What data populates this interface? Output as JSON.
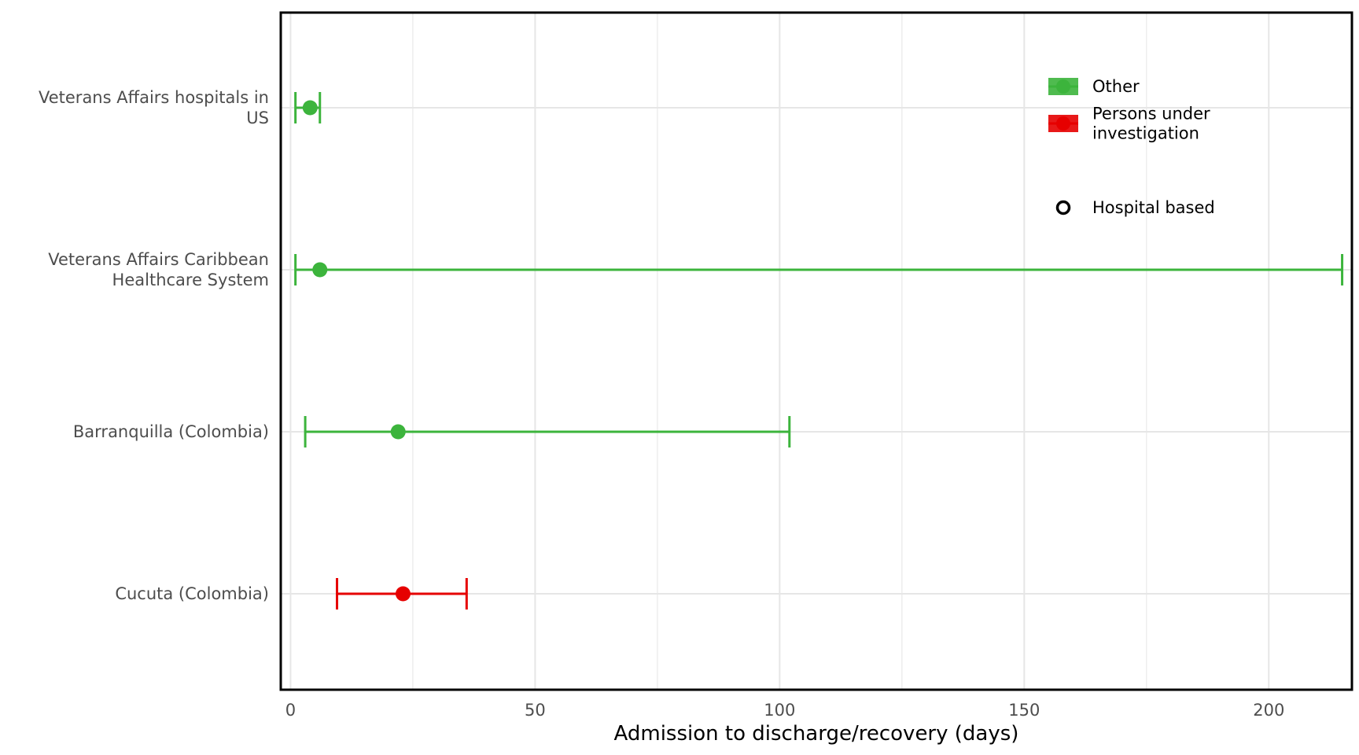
{
  "chart_data": {
    "type": "scatter",
    "xlabel": "Admission to discharge/recovery (days)",
    "ylabel": "",
    "xlim": [
      -2,
      217
    ],
    "x_ticks": [
      0,
      50,
      100,
      150,
      200
    ],
    "x_tick_labels": [
      "0",
      "50",
      "100",
      "150",
      "200"
    ],
    "grid": true,
    "categories": [
      [
        "Veterans Affairs hospitals in",
        "US"
      ],
      [
        "Veterans Affairs Caribbean",
        "Healthcare System"
      ],
      [
        "Barranquilla (Colombia)"
      ],
      [
        "Cucuta (Colombia)"
      ]
    ],
    "points": [
      {
        "series": "Other",
        "estimate": 4,
        "low": 1,
        "high": 6
      },
      {
        "series": "Other",
        "estimate": 6,
        "low": 1,
        "high": 215
      },
      {
        "series": "Other",
        "estimate": 22,
        "low": 3,
        "high": 102
      },
      {
        "series": "Persons under investigation",
        "estimate": 23,
        "low": 9.5,
        "high": 36
      }
    ],
    "series": [
      {
        "name": "Other",
        "label_lines": [
          "Other"
        ],
        "color": "#3cb43c"
      },
      {
        "name": "Persons under investigation",
        "label_lines": [
          "Persons under",
          "investigation"
        ],
        "color": "#e60000"
      }
    ],
    "shape_legend": {
      "label": "Hospital based",
      "shape": "open-circle"
    },
    "legend_position": "top-right"
  }
}
